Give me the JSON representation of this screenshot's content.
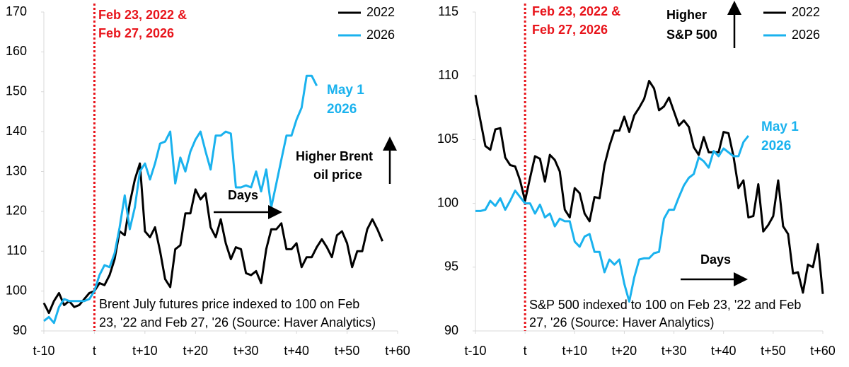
{
  "chart_data": [
    {
      "type": "line",
      "event_label": [
        "Feb 23, 2022 &",
        "Feb 27, 2026"
      ],
      "end_label": [
        "May 1",
        "2026"
      ],
      "direction_label": [
        "Higher Brent",
        "oil price"
      ],
      "days_label": "Days",
      "note": [
        "Brent July futures price indexed to 100 on Feb",
        "23, '22 and Feb 27, '26 (Source: Haver Analytics)"
      ],
      "event_x": 0,
      "x": [
        -10,
        -9,
        -8,
        -7,
        -6,
        -5,
        -4,
        -3,
        -2,
        -1,
        0,
        1,
        2,
        3,
        4,
        5,
        6,
        7,
        8,
        9,
        10,
        11,
        12,
        13,
        14,
        15,
        16,
        17,
        18,
        19,
        20,
        21,
        22,
        23,
        24,
        25,
        26,
        27,
        28,
        29,
        30,
        31,
        32,
        33,
        34,
        35,
        36,
        37,
        38,
        39,
        40,
        41,
        42,
        43,
        44,
        45,
        46,
        47,
        48,
        49,
        50,
        51,
        52,
        53,
        54,
        55,
        56,
        57,
        58,
        59,
        60
      ],
      "series": [
        {
          "name": "2022",
          "color": "#000000",
          "values": [
            97,
            94.5,
            97.5,
            99.5,
            96.5,
            97.5,
            96,
            96.5,
            98,
            99.5,
            100,
            102,
            101.5,
            104,
            108,
            115,
            114,
            122,
            128,
            132,
            115,
            113.5,
            116,
            110,
            103,
            101,
            110.5,
            111.5,
            119.5,
            119.5,
            125.5,
            123,
            124.5,
            116,
            113.5,
            118,
            112,
            108,
            111,
            110.5,
            104.5,
            104,
            105,
            102,
            110.5,
            115.5,
            115.5,
            117,
            110.5,
            110.5,
            112,
            106,
            108.5,
            108.5,
            111,
            113,
            111,
            108.5,
            114,
            115,
            112,
            106,
            110,
            110,
            115.5,
            118,
            115.5,
            112.5,
            null,
            null,
            null
          ]
        },
        {
          "name": "2026",
          "color": "#1ab2ee",
          "values": [
            92.5,
            93.5,
            92,
            96,
            98,
            97.5,
            97.5,
            97.5,
            97.5,
            98,
            100,
            104,
            106.5,
            106,
            109.5,
            116,
            124,
            115.5,
            121,
            130,
            132,
            128,
            132,
            137,
            137.5,
            140,
            127,
            133.5,
            130,
            135,
            138,
            140,
            135,
            130.5,
            139,
            139,
            140,
            139.5,
            126,
            126,
            126.5,
            126,
            130,
            125,
            130.5,
            121,
            127,
            133,
            139,
            139,
            143,
            146,
            154,
            154,
            151.5,
            null,
            null,
            null,
            null,
            null,
            null,
            null,
            null,
            null,
            null,
            null,
            null,
            null,
            null,
            null,
            null
          ]
        }
      ],
      "xlim": [
        -10,
        60
      ],
      "xticks": [
        {
          "value": -10,
          "label": "t-10"
        },
        {
          "value": 0,
          "label": "t"
        },
        {
          "value": 10,
          "label": "t+10"
        },
        {
          "value": 20,
          "label": "t+20"
        },
        {
          "value": 30,
          "label": "t+30"
        },
        {
          "value": 40,
          "label": "t+40"
        },
        {
          "value": 50,
          "label": "t+50"
        },
        {
          "value": 60,
          "label": "t+60"
        }
      ],
      "ylim": [
        90,
        170
      ],
      "yticks": [
        90,
        100,
        110,
        120,
        130,
        140,
        150,
        160,
        170
      ]
    },
    {
      "type": "line",
      "event_label": [
        "Feb 23, 2022 &",
        "Feb 27, 2026"
      ],
      "end_label": [
        "May 1",
        "2026"
      ],
      "direction_label": [
        "Higher",
        "S&P 500"
      ],
      "days_label": "Days",
      "note": [
        "S&P 500 indexed to 100 on Feb 23, '22 and Feb",
        "27, '26 (Source: Haver Analytics)"
      ],
      "event_x": 0,
      "x": [
        -10,
        -9,
        -8,
        -7,
        -6,
        -5,
        -4,
        -3,
        -2,
        -1,
        0,
        1,
        2,
        3,
        4,
        5,
        6,
        7,
        8,
        9,
        10,
        11,
        12,
        13,
        14,
        15,
        16,
        17,
        18,
        19,
        20,
        21,
        22,
        23,
        24,
        25,
        26,
        27,
        28,
        29,
        30,
        31,
        32,
        33,
        34,
        35,
        36,
        37,
        38,
        39,
        40,
        41,
        42,
        43,
        44,
        45,
        46,
        47,
        48,
        49,
        50,
        51,
        52,
        53,
        54,
        55,
        56,
        57,
        58,
        59,
        60
      ],
      "series": [
        {
          "name": "2022",
          "color": "#000000",
          "values": [
            108.5,
            106.5,
            104.5,
            104.2,
            105.8,
            105.9,
            103.6,
            103,
            102.9,
            101.8,
            100.2,
            102,
            103.7,
            103.5,
            101.7,
            103.8,
            103.4,
            102.5,
            99.5,
            98.9,
            101.2,
            100.8,
            99.2,
            98.6,
            100.5,
            100.4,
            103,
            104.5,
            105.7,
            105.7,
            106.8,
            105.6,
            106.9,
            107.5,
            108.2,
            109.6,
            109,
            107.3,
            107.6,
            108.3,
            107.2,
            106.1,
            106.5,
            106,
            104.4,
            103.8,
            105.2,
            104,
            104,
            104,
            105.6,
            105.5,
            103.7,
            101.2,
            101.8,
            98.9,
            99,
            101.5,
            97.8,
            98.3,
            99,
            101.8,
            98.2,
            97.6,
            94.5,
            94.6,
            93,
            95.2,
            95,
            96.8,
            92.9
          ]
        },
        {
          "name": "2026",
          "color": "#1ab2ee",
          "values": [
            99.4,
            99.4,
            99.5,
            100.2,
            99.8,
            100.4,
            99.5,
            100.2,
            101,
            100.5,
            100,
            100,
            99.2,
            99.9,
            98.9,
            99.2,
            98.2,
            98.8,
            98.6,
            98.6,
            97,
            96.6,
            97.4,
            97.6,
            96.2,
            96.2,
            94.6,
            95.6,
            95.2,
            95.6,
            93.7,
            92.3,
            94.2,
            95.6,
            95.7,
            95.7,
            96.1,
            96.2,
            98.8,
            99.5,
            99.5,
            100.5,
            101.4,
            102,
            102.3,
            103.6,
            103.3,
            102.8,
            104.1,
            103.7,
            104.3,
            104,
            103.7,
            103.7,
            104.8,
            105.3,
            null,
            null,
            null,
            null,
            null,
            null,
            null,
            null,
            null,
            null,
            null,
            null,
            null,
            null,
            null
          ]
        }
      ],
      "xlim": [
        -10,
        60
      ],
      "xticks": [
        {
          "value": -10,
          "label": "t-10"
        },
        {
          "value": 0,
          "label": "t"
        },
        {
          "value": 10,
          "label": "t+10"
        },
        {
          "value": 20,
          "label": "t+20"
        },
        {
          "value": 30,
          "label": "t+30"
        },
        {
          "value": 40,
          "label": "t+40"
        },
        {
          "value": 50,
          "label": "t+50"
        },
        {
          "value": 60,
          "label": "t+60"
        }
      ],
      "ylim": [
        90,
        115
      ],
      "yticks": [
        90,
        95,
        100,
        105,
        110,
        115
      ]
    }
  ]
}
